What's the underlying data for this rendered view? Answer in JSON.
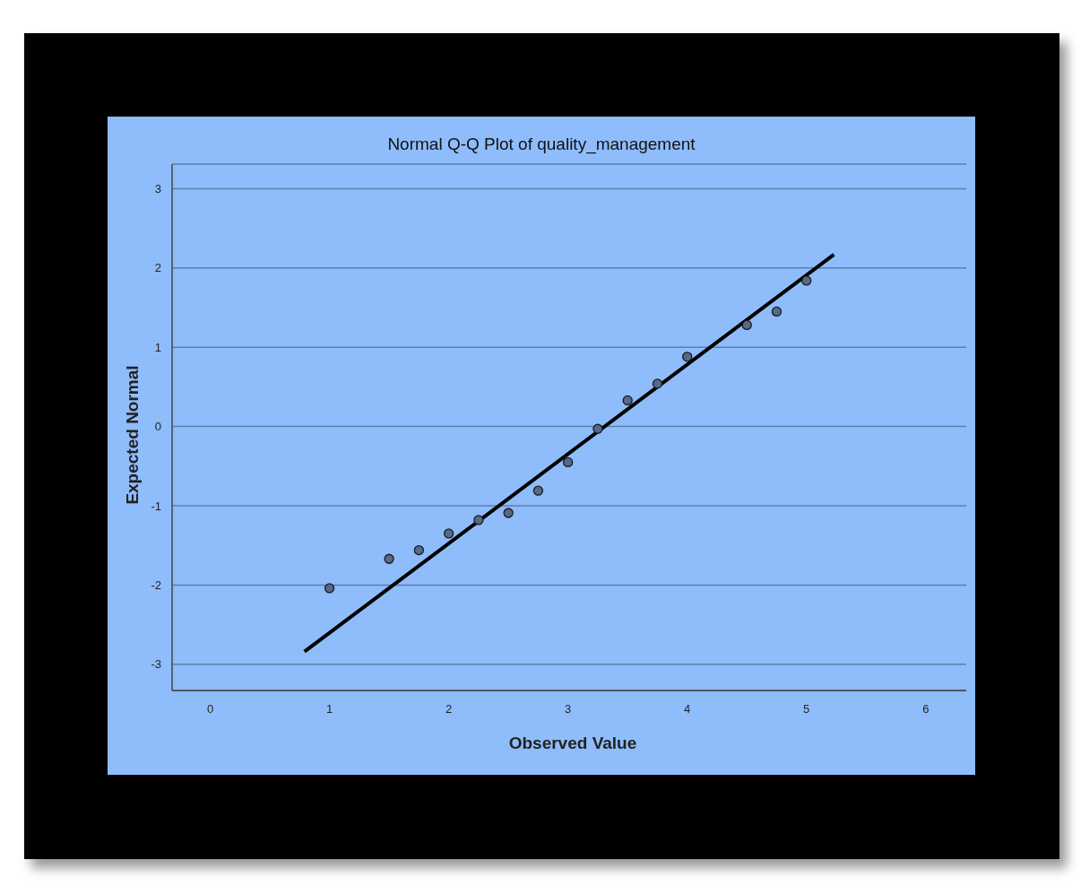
{
  "chart_data": {
    "type": "scatter",
    "title": "Normal Q-Q Plot of quality_management",
    "xlabel": "Observed Value",
    "ylabel": "Expected Normal",
    "xlim": [
      -0.32,
      6.34
    ],
    "ylim": [
      -3.33,
      3.31
    ],
    "xticks": [
      0,
      1,
      2,
      3,
      4,
      5,
      6
    ],
    "yticks": [
      -3,
      -2,
      -1,
      0,
      1,
      2,
      3
    ],
    "grid": "y",
    "series": [
      {
        "marker": "circle",
        "color": "#56698a",
        "x": [
          1,
          1.5,
          1.75,
          2,
          2.25,
          2.5,
          2.75,
          3,
          3.25,
          3.5,
          3.75,
          4,
          4.5,
          4.75,
          5
        ],
        "values": [
          -2.04,
          -1.67,
          -1.56,
          -1.35,
          -1.18,
          -1.09,
          -0.81,
          -0.45,
          -0.03,
          0.33,
          0.54,
          0.88,
          1.28,
          1.45,
          1.84
        ]
      },
      {
        "type": "line",
        "marker": "none",
        "color": "#000000",
        "x": [
          0.79,
          5.23
        ],
        "values": [
          -2.84,
          2.17
        ]
      }
    ]
  }
}
